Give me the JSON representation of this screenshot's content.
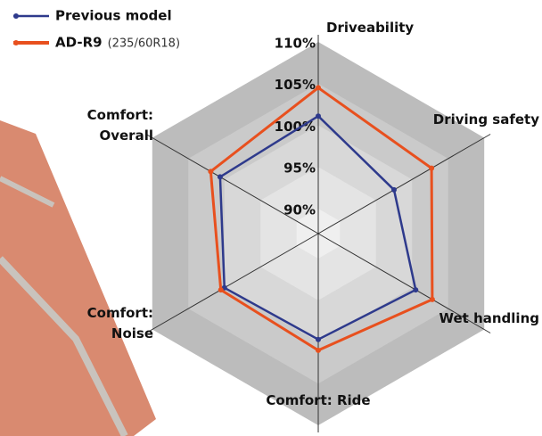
{
  "chart_data": {
    "type": "radar",
    "categories": [
      "Driveability",
      "Driving safety",
      "Wet handling",
      "Comfort: Ride",
      "Comfort: Noise",
      "Comfort: Overall"
    ],
    "rlim": [
      87,
      110
    ],
    "rticks": [
      {
        "value": 90,
        "label": "90%"
      },
      {
        "value": 95,
        "label": "95%"
      },
      {
        "value": 100,
        "label": "100%"
      },
      {
        "value": 105,
        "label": "105%"
      },
      {
        "value": 110,
        "label": "110%"
      }
    ],
    "series": [
      {
        "name": "Previous model",
        "color": "#2e3a8c",
        "values": [
          101.1,
          97.5,
          100.5,
          99.7,
          100,
          100.6
        ]
      },
      {
        "name": "AD-R9",
        "size": "(235/60R18)",
        "color": "#e8501e",
        "values": [
          104.5,
          102.7,
          102.8,
          101,
          100.5,
          101.9
        ]
      }
    ]
  }
}
